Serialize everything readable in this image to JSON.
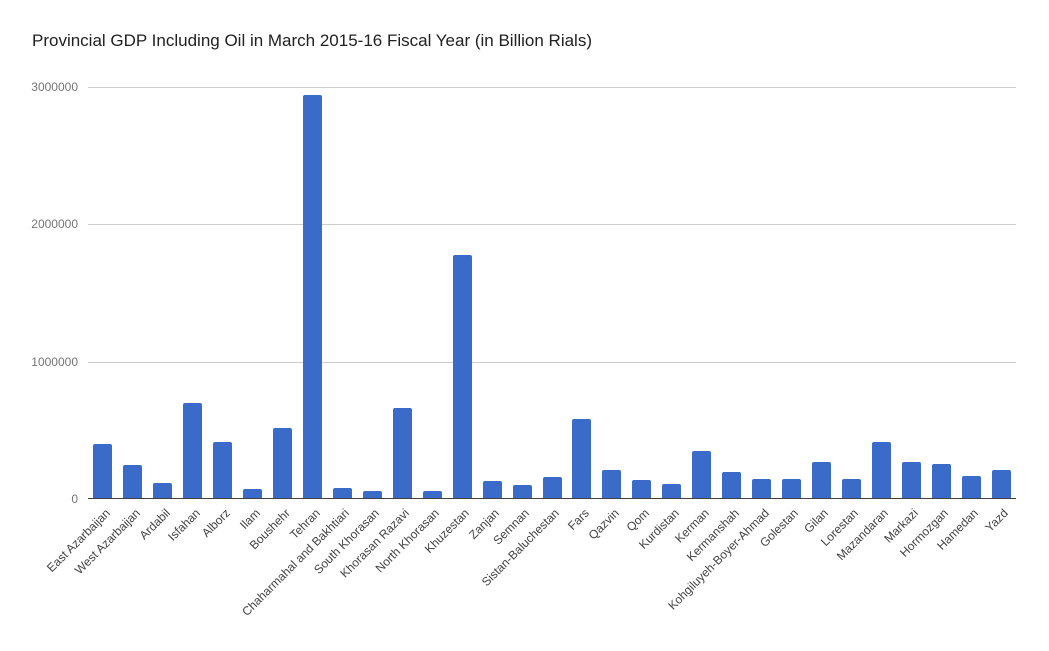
{
  "page": {
    "background": "#ffffff"
  },
  "chart_data": {
    "type": "bar",
    "title": "Provincial GDP Including Oil in March 2015-16 Fiscal Year (in Billion Rials)",
    "categories": [
      "East Azarbaijan",
      "West Azarbaijan",
      "Ardabil",
      "Isfahan",
      "Alborz",
      "Ilam",
      "Boushehr",
      "Tehran",
      "Chaharmahal and Bakhtiari",
      "South Khorasan",
      "Khorasan Razavi",
      "North Khorasan",
      "Khuzestan",
      "Zanjan",
      "Semnan",
      "Sistan-Baluchestan",
      "Fars",
      "Qazvin",
      "Qom",
      "Kurdistan",
      "Kerman",
      "Kermanshah",
      "Kohgiluyeh-Boyer-Ahmad",
      "Golestan",
      "Gilan",
      "Lorestan",
      "Mazandaran",
      "Markazi",
      "Hormozgan",
      "Hamedan",
      "Yazd"
    ],
    "values": [
      400000,
      250000,
      120000,
      700000,
      413000,
      76000,
      519000,
      2940000,
      83000,
      58000,
      660000,
      58000,
      1780000,
      134000,
      104000,
      160000,
      585000,
      210000,
      136000,
      112000,
      350000,
      197000,
      144000,
      144000,
      270000,
      144000,
      415000,
      270000,
      258000,
      165000,
      214000
    ],
    "xlabel": "",
    "ylabel": "",
    "ylim": [
      0,
      3000000
    ],
    "yticks": [
      0,
      1000000,
      2000000,
      3000000
    ],
    "ytick_labels": [
      "0",
      "1000000",
      "2000000",
      "3000000"
    ],
    "x_label_rotation": -45,
    "grid": true,
    "legend": "none",
    "colors": {
      "bar": "#3A6BC9",
      "gridline": "#cccccc",
      "axis_line": "#424242",
      "title_text": "#212121",
      "y_tick_text": "#757575",
      "x_tick_text": "#424242",
      "background": "#ffffff"
    }
  }
}
